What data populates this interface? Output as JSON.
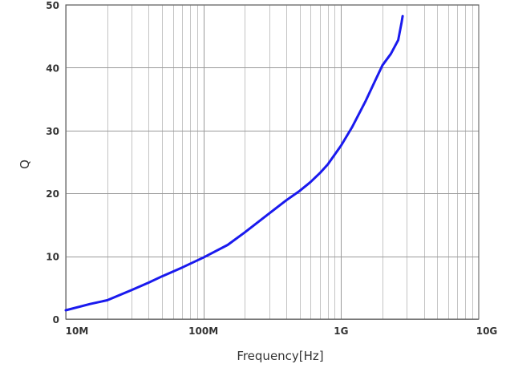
{
  "chart_data": {
    "type": "line",
    "title": "",
    "xlabel": "Frequency[Hz]",
    "ylabel": "Q",
    "xscale": "log",
    "xlim": [
      10000000,
      10000000000
    ],
    "ylim": [
      0,
      50
    ],
    "xticks": [
      {
        "value": 10000000,
        "label": "10M"
      },
      {
        "value": 100000000,
        "label": "100M"
      },
      {
        "value": 1000000000,
        "label": "1G"
      },
      {
        "value": 10000000000,
        "label": "10G"
      }
    ],
    "yticks": [
      {
        "value": 0,
        "label": "0"
      },
      {
        "value": 10,
        "label": "10"
      },
      {
        "value": 20,
        "label": "20"
      },
      {
        "value": 30,
        "label": "30"
      },
      {
        "value": 40,
        "label": "40"
      },
      {
        "value": 50,
        "label": "50"
      }
    ],
    "grid": true,
    "legend": "none",
    "series": [
      {
        "color": "#1a1aee",
        "x": [
          10000000,
          15000000,
          20000000,
          30000000,
          40000000,
          50000000,
          70000000,
          100000000,
          150000000,
          200000000,
          300000000,
          400000000,
          500000000,
          600000000,
          700000000,
          800000000,
          1000000000,
          1200000000,
          1500000000,
          1800000000,
          2000000000,
          2300000000,
          2600000000,
          2750000000,
          2800000000
        ],
        "y": [
          1.4,
          2.4,
          3.0,
          4.6,
          5.8,
          6.8,
          8.2,
          9.8,
          11.8,
          13.8,
          16.8,
          18.9,
          20.4,
          21.8,
          23.2,
          24.6,
          27.6,
          30.5,
          34.6,
          38.3,
          40.4,
          42.2,
          44.4,
          47.2,
          48.2
        ]
      }
    ]
  }
}
